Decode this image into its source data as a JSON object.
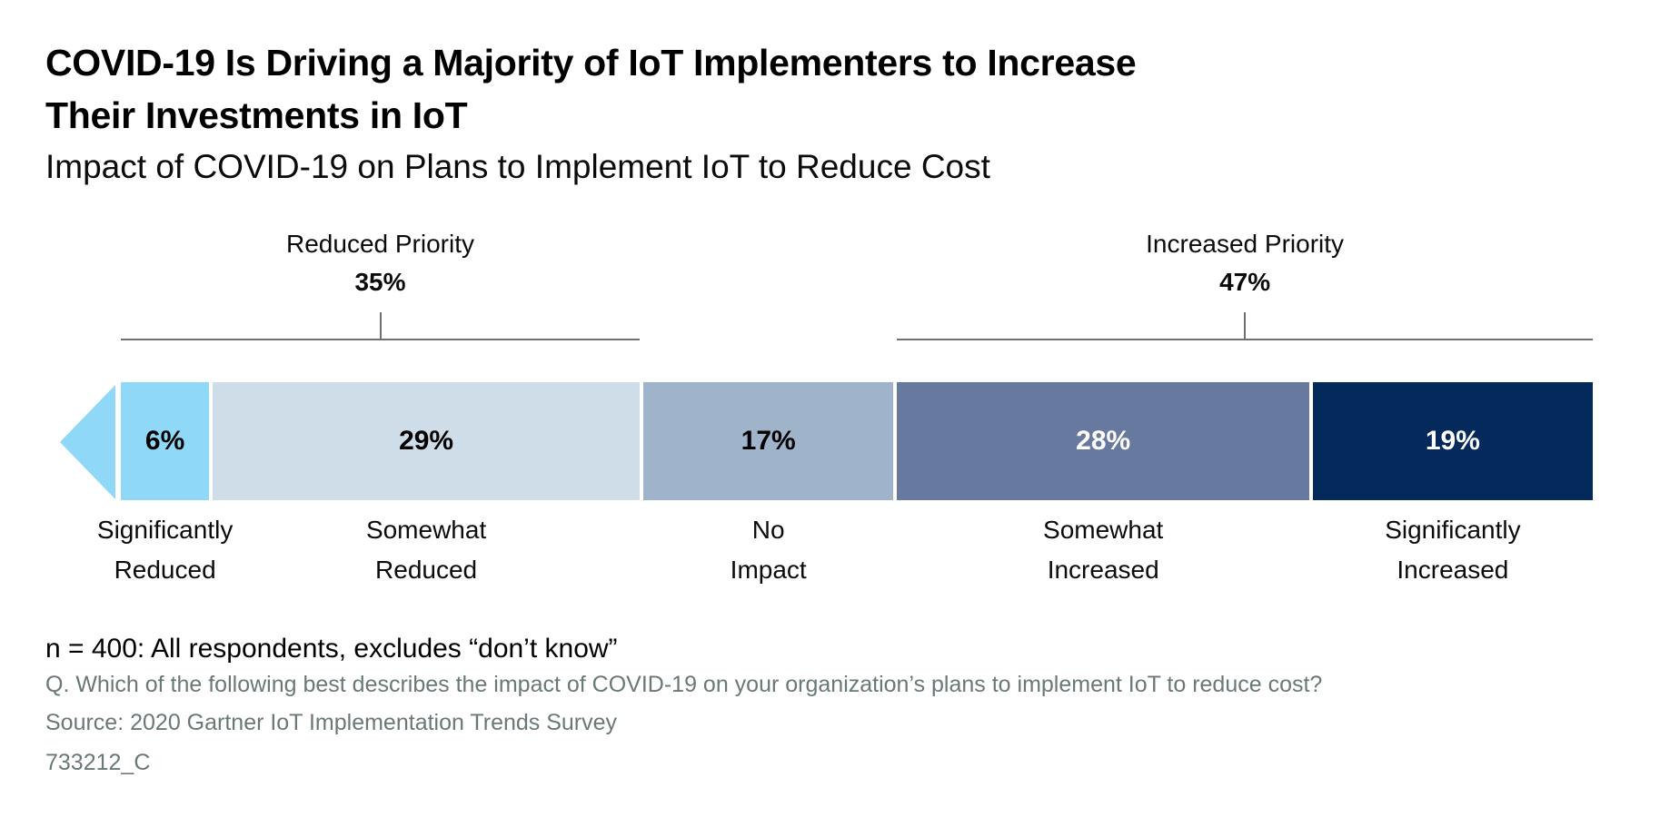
{
  "header": {
    "title": "COVID-19 Is Driving a Majority of IoT Implementers to Increase Their Investments in IoT",
    "title_lines": [
      "COVID-19 Is Driving a Majority of IoT Implementers to Increase",
      "Their Investments in IoT"
    ],
    "subtitle": "Impact of COVID-19 on Plans to Implement IoT to Reduce Cost"
  },
  "chart_data": {
    "type": "bar",
    "variant": "horizontal-stacked-diverging",
    "unit": "%",
    "categories": [
      "Significantly Reduced",
      "Somewhat Reduced",
      "No Impact",
      "Somewhat Increased",
      "Significantly Increased"
    ],
    "values": [
      6,
      29,
      17,
      28,
      19
    ],
    "value_labels": [
      "6%",
      "29%",
      "17%",
      "28%",
      "19%"
    ],
    "colors": [
      "#8FD8F7",
      "#CFDDE8",
      "#9FB3CB",
      "#67799E",
      "#042A5C"
    ],
    "value_label_colors": [
      "#000000",
      "#000000",
      "#000000",
      "#FFFFFF",
      "#FFFFFF"
    ],
    "groups": [
      {
        "label": "Reduced Priority",
        "value_label": "35%",
        "from": 0,
        "to": 1
      },
      {
        "label": "Increased Priority",
        "value_label": "47%",
        "from": 3,
        "to": 4
      }
    ],
    "decorations": {
      "left_arrow_color": "#8FD8F7",
      "bracket_line_color": "#6F6F6F"
    },
    "layout_hints": {
      "legend": "none",
      "grid": "off",
      "right_edge_clipped": true
    }
  },
  "footnotes": {
    "sample": "n = 400: All respondents, excludes “don’t know”",
    "question": "Q. Which of the following best describes the impact of COVID-19 on your organization’s plans to implement IoT to reduce cost?",
    "source": "Source: 2020 Gartner IoT Implementation Trends Survey",
    "document_id": "733212_C"
  }
}
